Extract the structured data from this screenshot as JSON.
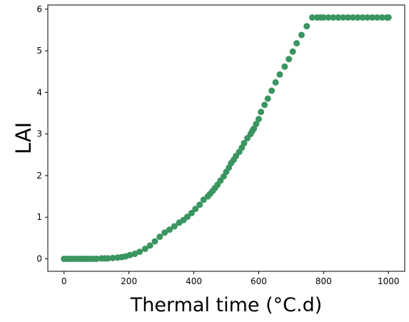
{
  "chart_data": {
    "type": "scatter",
    "title": "",
    "xlabel": "Thermal time (°C.d)",
    "ylabel": "LAI",
    "xlim": [
      -50,
      1050
    ],
    "ylim": [
      -0.3,
      6.1
    ],
    "xticks": [
      0,
      200,
      400,
      600,
      800,
      1000
    ],
    "yticks": [
      0,
      1,
      2,
      3,
      4,
      5,
      6
    ],
    "grid": false,
    "legend": "none",
    "marker_color": "#3a9560",
    "series": [
      {
        "x": [
          0,
          10,
          20,
          30,
          40,
          50,
          60,
          70,
          80,
          90,
          100,
          115,
          125,
          135,
          150,
          165,
          178,
          190,
          203,
          218,
          233,
          250,
          265,
          280,
          295,
          310,
          325,
          340,
          355,
          368,
          380,
          393,
          405,
          418,
          430,
          443,
          450,
          458,
          465,
          473,
          482,
          492,
          500,
          508,
          515,
          523,
          530,
          540,
          548,
          555,
          565,
          575,
          580,
          585,
          592,
          600,
          607,
          618,
          628,
          640,
          652,
          665,
          680,
          693,
          705,
          717,
          732,
          748,
          765,
          780,
          790,
          800,
          815,
          830,
          845,
          860,
          875,
          890,
          905,
          920,
          935,
          950,
          965,
          980,
          995,
          1000
        ],
        "y": [
          0.0,
          0.0,
          0.0,
          0.0,
          0.0,
          0.0,
          0.0,
          0.0,
          0.0,
          0.0,
          0.0,
          0.01,
          0.01,
          0.01,
          0.02,
          0.03,
          0.04,
          0.06,
          0.09,
          0.12,
          0.17,
          0.24,
          0.32,
          0.42,
          0.53,
          0.63,
          0.7,
          0.78,
          0.87,
          0.93,
          1.01,
          1.1,
          1.2,
          1.3,
          1.42,
          1.5,
          1.56,
          1.63,
          1.7,
          1.78,
          1.88,
          1.98,
          2.09,
          2.19,
          2.3,
          2.38,
          2.47,
          2.57,
          2.67,
          2.78,
          2.9,
          3.0,
          3.07,
          3.13,
          3.24,
          3.36,
          3.53,
          3.7,
          3.85,
          4.04,
          4.24,
          4.43,
          4.62,
          4.8,
          4.98,
          5.18,
          5.38,
          5.59,
          5.8,
          5.8,
          5.8,
          5.8,
          5.8,
          5.8,
          5.8,
          5.8,
          5.8,
          5.8,
          5.8,
          5.8,
          5.8,
          5.8,
          5.8,
          5.8,
          5.8,
          5.8
        ]
      }
    ]
  }
}
